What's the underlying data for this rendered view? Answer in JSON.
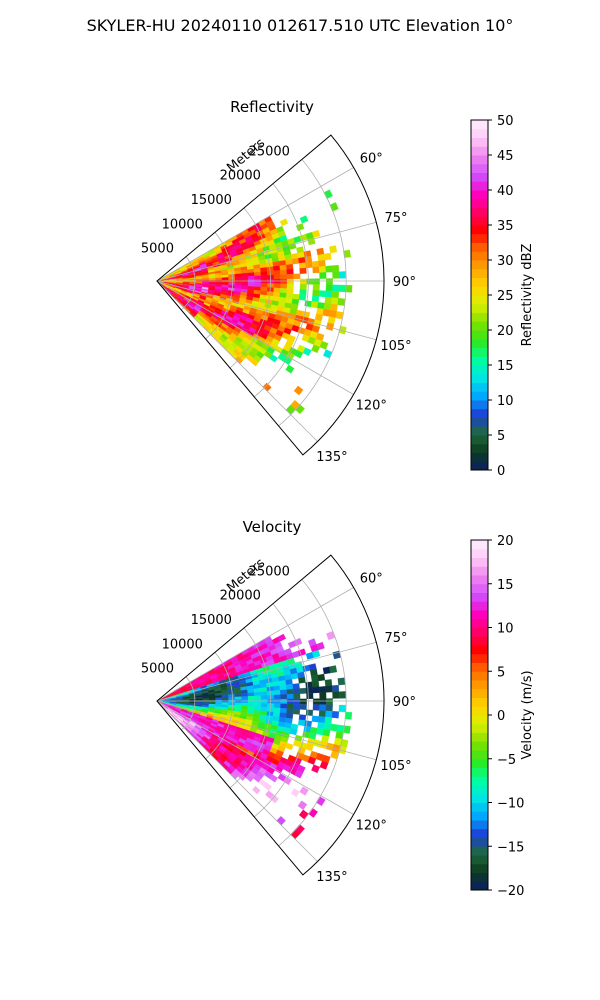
{
  "figure": {
    "suptitle": "SKYLER-HU  20240110  012617.510 UTC Elevation 10°"
  },
  "chart_data": [
    {
      "type": "heatmap",
      "projection": "polar-sector",
      "title": "Reflectivity",
      "radial_label": "Meters",
      "radial_ticks": [
        5000,
        10000,
        15000,
        20000,
        25000
      ],
      "radial_tick_labels": [
        "5000",
        "10000",
        "15000",
        "20000",
        "25000"
      ],
      "rlim": [
        0,
        30000
      ],
      "azimuth_range_deg": [
        50,
        140
      ],
      "azimuth_ticks_deg": [
        60,
        75,
        90,
        105,
        120,
        135
      ],
      "azimuth_tick_labels": [
        "60°",
        "75°",
        "90°",
        "105°",
        "120°",
        "135°"
      ],
      "grid": true,
      "colorbar": {
        "label": "Reflectivity dBZ",
        "range": [
          0,
          50
        ],
        "ticks": [
          0,
          5,
          10,
          15,
          20,
          25,
          30,
          35,
          40,
          45,
          50
        ],
        "tick_labels": [
          "0",
          "5",
          "10",
          "15",
          "20",
          "25",
          "30",
          "35",
          "40",
          "45",
          "50"
        ],
        "stops": [
          "#0a1f63",
          "#0d3b1f",
          "#1e6b3c",
          "#1d3fd6",
          "#00a6ff",
          "#00e5e5",
          "#00ff9c",
          "#2fe81a",
          "#7fe000",
          "#d9f000",
          "#ffd400",
          "#ffa000",
          "#ff6600",
          "#ff0000",
          "#ff0066",
          "#ff00c0",
          "#d24dff",
          "#ee82ee",
          "#ffc8f5",
          "#fff0ff"
        ]
      }
    },
    {
      "type": "heatmap",
      "projection": "polar-sector",
      "title": "Velocity",
      "radial_label": "Meters",
      "radial_ticks": [
        5000,
        10000,
        15000,
        20000,
        25000
      ],
      "radial_tick_labels": [
        "5000",
        "10000",
        "15000",
        "20000",
        "25000"
      ],
      "rlim": [
        0,
        30000
      ],
      "azimuth_range_deg": [
        50,
        140
      ],
      "azimuth_ticks_deg": [
        60,
        75,
        90,
        105,
        120,
        135
      ],
      "azimuth_tick_labels": [
        "60°",
        "75°",
        "90°",
        "105°",
        "120°",
        "135°"
      ],
      "grid": true,
      "colorbar": {
        "label": "Velocity (m/s)",
        "range": [
          -20,
          20
        ],
        "ticks": [
          -20,
          -15,
          -10,
          -5,
          0,
          5,
          10,
          15,
          20
        ],
        "tick_labels": [
          "−20",
          "−15",
          "−10",
          "−5",
          "0",
          "5",
          "10",
          "15",
          "20"
        ],
        "stops": [
          "#0a1f63",
          "#0d3b1f",
          "#1e6b3c",
          "#1d3fd6",
          "#00a6ff",
          "#00e5e5",
          "#00ff9c",
          "#2fe81a",
          "#7fe000",
          "#d9f000",
          "#ffd400",
          "#ffa000",
          "#ff6600",
          "#ff0000",
          "#ff0066",
          "#ff00c0",
          "#d24dff",
          "#ee82ee",
          "#ffc8f5",
          "#fff0ff"
        ]
      }
    }
  ]
}
